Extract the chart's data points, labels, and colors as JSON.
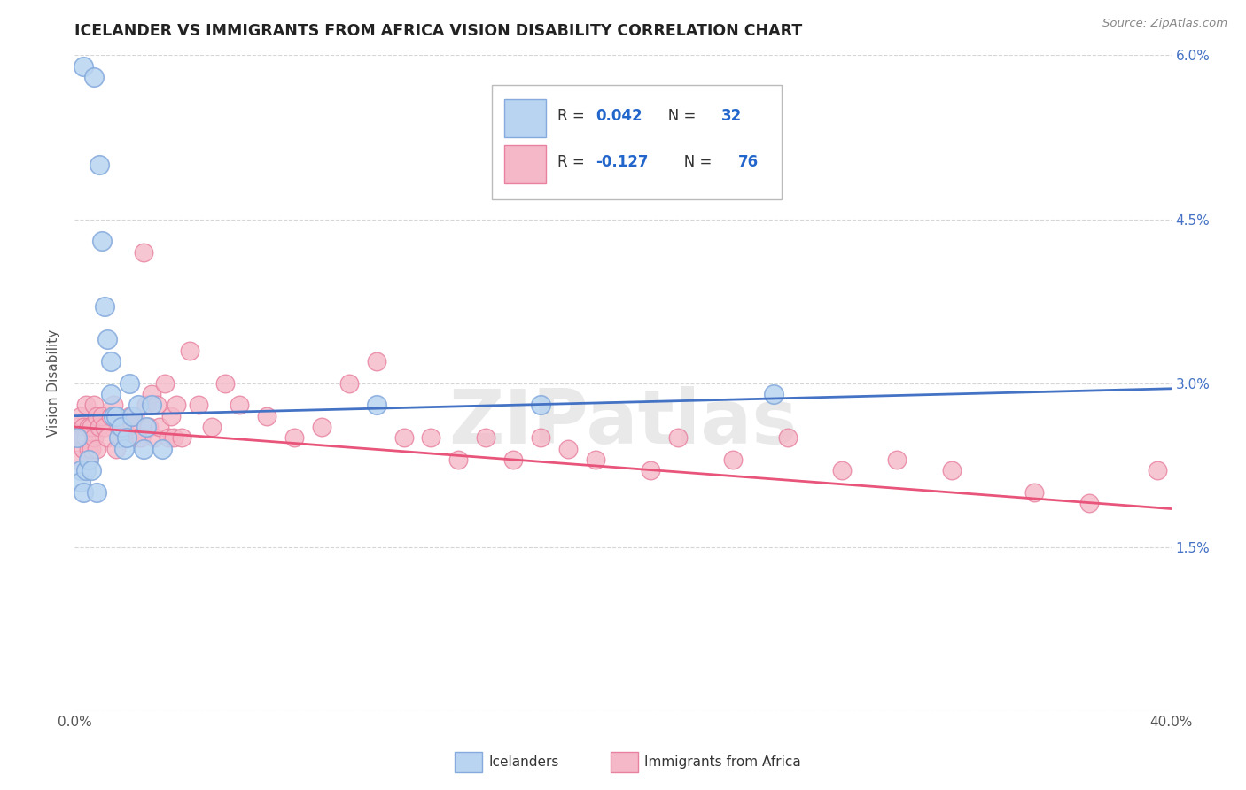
{
  "title": "ICELANDER VS IMMIGRANTS FROM AFRICA VISION DISABILITY CORRELATION CHART",
  "source": "Source: ZipAtlas.com",
  "ylabel": "Vision Disability",
  "xlim": [
    0.0,
    0.4
  ],
  "ylim": [
    0.0,
    0.06
  ],
  "xtick_vals": [
    0.0,
    0.1,
    0.2,
    0.3,
    0.4
  ],
  "xtick_labels": [
    "0.0%",
    "",
    "",
    "",
    "40.0%"
  ],
  "ytick_vals": [
    0.0,
    0.015,
    0.03,
    0.045,
    0.06
  ],
  "ytick_labels_right": [
    "",
    "1.5%",
    "3.0%",
    "4.5%",
    "6.0%"
  ],
  "blue_face": "#B8D4F0",
  "blue_edge": "#85AADD",
  "pink_face": "#F5B8C8",
  "pink_edge": "#E880A0",
  "blue_line": "#4472C4",
  "pink_line": "#E8547A",
  "label_blue": "Icelanders",
  "label_pink": "Immigrants from Africa",
  "watermark_text": "ZIPatlas",
  "ice_x": [
    0.003,
    0.007,
    0.009,
    0.01,
    0.011,
    0.012,
    0.013,
    0.013,
    0.014,
    0.015,
    0.016,
    0.017,
    0.018,
    0.019,
    0.02,
    0.021,
    0.023,
    0.025,
    0.026,
    0.028,
    0.032,
    0.001,
    0.002,
    0.002,
    0.003,
    0.004,
    0.005,
    0.006,
    0.008,
    0.17,
    0.11,
    0.255
  ],
  "ice_y": [
    0.059,
    0.058,
    0.05,
    0.043,
    0.037,
    0.034,
    0.032,
    0.029,
    0.027,
    0.027,
    0.025,
    0.026,
    0.024,
    0.025,
    0.03,
    0.027,
    0.028,
    0.024,
    0.026,
    0.028,
    0.024,
    0.025,
    0.022,
    0.021,
    0.02,
    0.022,
    0.023,
    0.022,
    0.02,
    0.028,
    0.028,
    0.029
  ],
  "afr_x": [
    0.001,
    0.001,
    0.001,
    0.002,
    0.002,
    0.003,
    0.003,
    0.003,
    0.004,
    0.004,
    0.005,
    0.005,
    0.005,
    0.006,
    0.006,
    0.007,
    0.007,
    0.008,
    0.008,
    0.009,
    0.01,
    0.011,
    0.012,
    0.013,
    0.014,
    0.015,
    0.016,
    0.017,
    0.018,
    0.019,
    0.02,
    0.021,
    0.022,
    0.023,
    0.024,
    0.025,
    0.026,
    0.027,
    0.028,
    0.029,
    0.03,
    0.031,
    0.033,
    0.034,
    0.035,
    0.036,
    0.037,
    0.039,
    0.042,
    0.045,
    0.05,
    0.055,
    0.06,
    0.07,
    0.08,
    0.09,
    0.1,
    0.11,
    0.12,
    0.13,
    0.14,
    0.15,
    0.16,
    0.17,
    0.18,
    0.19,
    0.21,
    0.22,
    0.24,
    0.26,
    0.28,
    0.3,
    0.32,
    0.35,
    0.37,
    0.395
  ],
  "afr_y": [
    0.026,
    0.025,
    0.023,
    0.027,
    0.025,
    0.026,
    0.025,
    0.024,
    0.028,
    0.025,
    0.026,
    0.024,
    0.023,
    0.026,
    0.024,
    0.028,
    0.025,
    0.027,
    0.024,
    0.026,
    0.027,
    0.026,
    0.025,
    0.027,
    0.028,
    0.024,
    0.026,
    0.025,
    0.026,
    0.025,
    0.027,
    0.026,
    0.027,
    0.025,
    0.025,
    0.042,
    0.028,
    0.026,
    0.029,
    0.025,
    0.028,
    0.026,
    0.03,
    0.025,
    0.027,
    0.025,
    0.028,
    0.025,
    0.033,
    0.028,
    0.026,
    0.03,
    0.028,
    0.027,
    0.025,
    0.026,
    0.03,
    0.032,
    0.025,
    0.025,
    0.023,
    0.025,
    0.023,
    0.025,
    0.024,
    0.023,
    0.022,
    0.025,
    0.023,
    0.025,
    0.022,
    0.023,
    0.022,
    0.02,
    0.019,
    0.022
  ],
  "blue_line_y0": 0.027,
  "blue_line_y1": 0.0295,
  "pink_line_y0": 0.026,
  "pink_line_y1": 0.0185
}
